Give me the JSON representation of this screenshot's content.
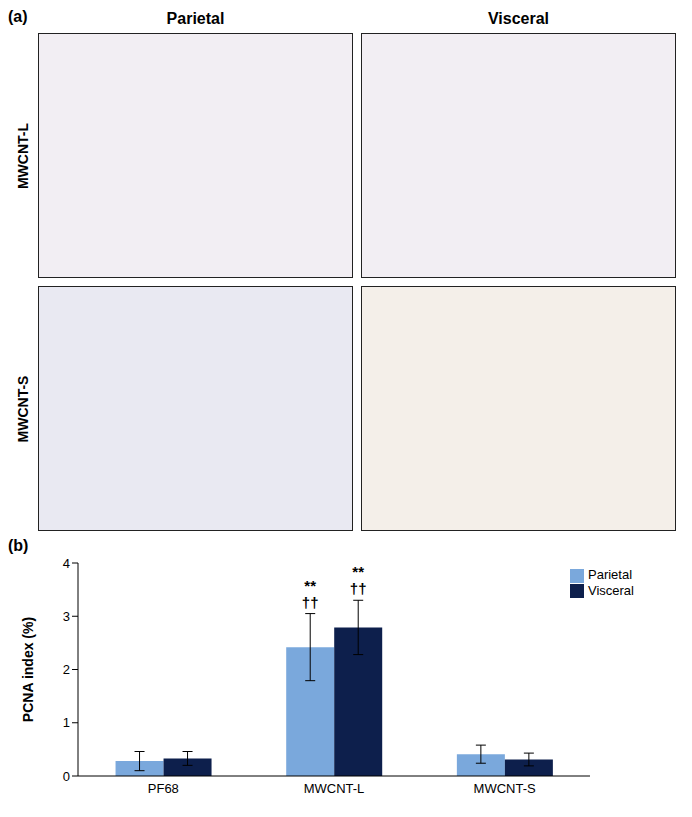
{
  "panel_a": {
    "label": "(a)",
    "columns": [
      "Parietal",
      "Visceral"
    ],
    "rows": [
      "MWCNT-L",
      "MWCNT-S"
    ]
  },
  "chart_data": {
    "type": "bar",
    "title": "(b)",
    "y_label": "PCNA index (%)",
    "categories": [
      "PF68",
      "MWCNT-L",
      "MWCNT-S"
    ],
    "series": [
      {
        "name": "Parietal",
        "color": "#7aa8dc",
        "values": [
          0.28,
          2.42,
          0.41
        ],
        "errors": [
          0.18,
          0.63,
          0.17
        ]
      },
      {
        "name": "Visceral",
        "color": "#0d1f4c",
        "values": [
          0.33,
          2.79,
          0.31
        ],
        "errors": [
          0.13,
          0.51,
          0.12
        ]
      }
    ],
    "annotations": [
      {
        "category": "MWCNT-L",
        "series": "Parietal",
        "labels": [
          "**",
          "††"
        ]
      },
      {
        "category": "MWCNT-L",
        "series": "Visceral",
        "labels": [
          "**",
          "††"
        ]
      }
    ],
    "ylim": [
      0,
      4
    ],
    "yticks": [
      0,
      1,
      2,
      3,
      4
    ],
    "grid": false,
    "legend": "upper right"
  }
}
